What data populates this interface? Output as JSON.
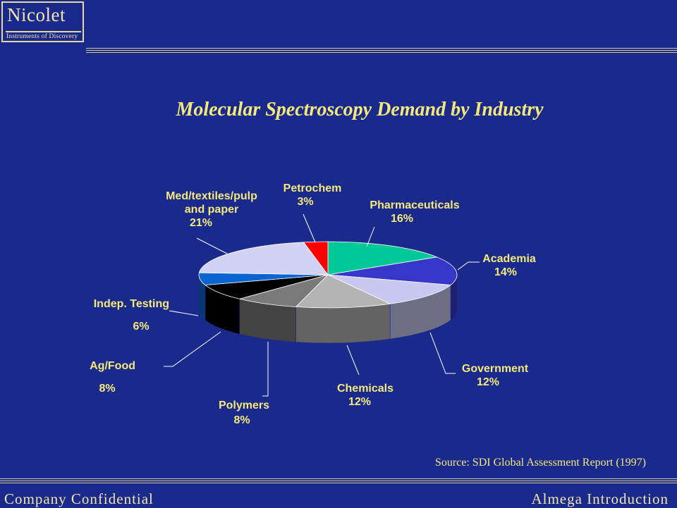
{
  "header": {
    "logo_name": "Nicolet",
    "logo_tagline": "Instruments of Discovery"
  },
  "footer": {
    "left": "Company Confidential",
    "right": "Almega Introduction"
  },
  "source": "Source: SDI Global Assessment Report (1997)",
  "colors": {
    "background": "#1a2a8c",
    "title": "#f4e97a",
    "rule": "#d9c98e"
  },
  "chart_data": {
    "type": "pie",
    "title": "Molecular Spectroscopy Demand by Industry",
    "slices": [
      {
        "label_lines": [
          "Pharmaceuticals"
        ],
        "value_label": "16%",
        "value": 16,
        "color": "#00c896"
      },
      {
        "label_lines": [
          "Academia"
        ],
        "value_label": "14%",
        "value": 14,
        "color": "#3636c8"
      },
      {
        "label_lines": [
          "Government"
        ],
        "value_label": "12%",
        "value": 12,
        "color": "#c8c8f0"
      },
      {
        "label_lines": [
          "Chemicals"
        ],
        "value_label": "12%",
        "value": 12,
        "color": "#b4b4b4"
      },
      {
        "label_lines": [
          "Polymers"
        ],
        "value_label": "8%",
        "value": 8,
        "color": "#7a7a7a"
      },
      {
        "label_lines": [
          "Ag/Food"
        ],
        "value_label": "8%",
        "value": 8,
        "color": "#000000"
      },
      {
        "label_lines": [
          "Indep. Testing"
        ],
        "value_label": "6%",
        "value": 6,
        "color": "#0a64d2"
      },
      {
        "label_lines": [
          "Med/textiles/pulp",
          "and paper"
        ],
        "value_label": "21%",
        "value": 21,
        "color": "#d2d2f5"
      },
      {
        "label_lines": [
          "Petrochem"
        ],
        "value_label": "3%",
        "value": 3,
        "color": "#ff0000"
      }
    ]
  }
}
